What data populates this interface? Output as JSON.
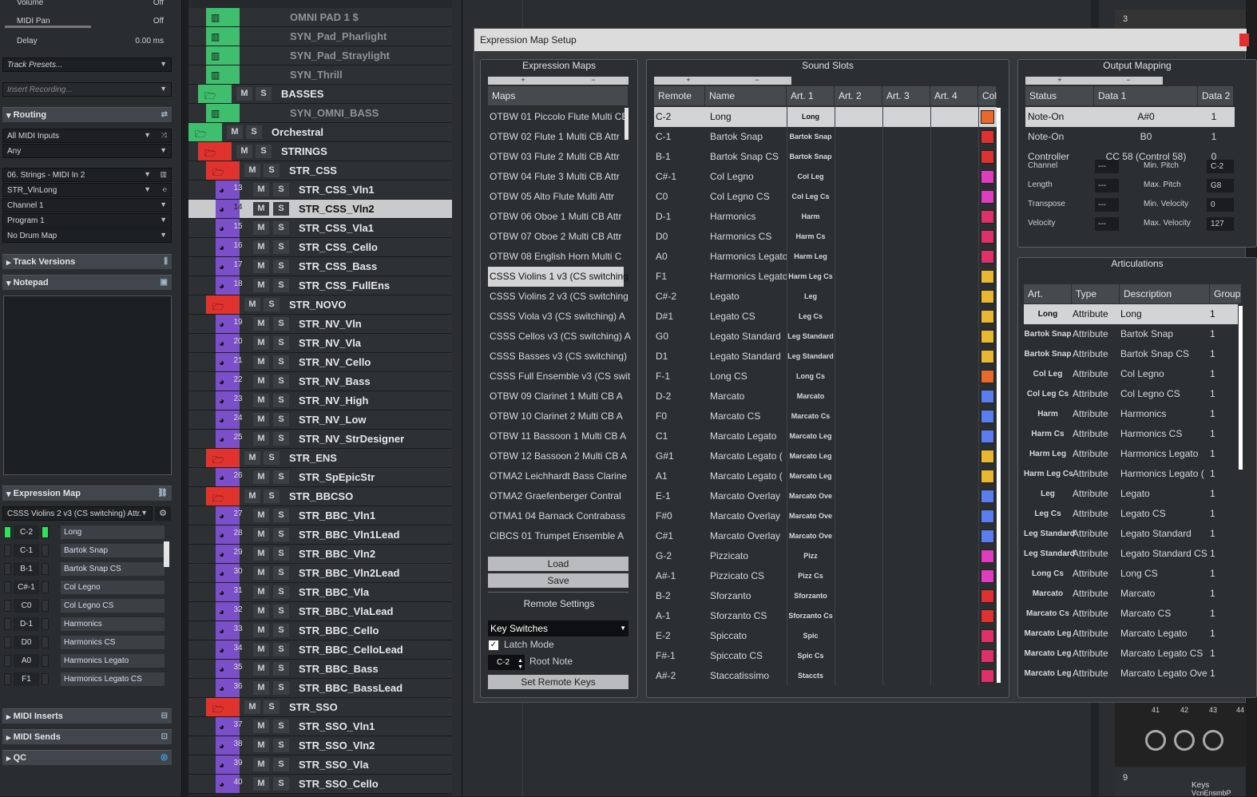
{
  "inspector": {
    "top_rows": [
      {
        "label": "Volume",
        "value": "Off"
      },
      {
        "label": "MIDI Pan",
        "value": "Off"
      },
      {
        "label": "Delay",
        "value": "0.00 ms"
      }
    ],
    "track_presets": "Track Presets...",
    "insert_recording": "Insert Recording...",
    "routing": {
      "title": "Routing",
      "input": "All MIDI Inputs",
      "any": "Any",
      "output": "06. Strings - MIDI In 2",
      "instrument": "STR_VlnLong",
      "channel": "Channel 1",
      "program": "Program 1",
      "drum_map": "No Drum Map"
    },
    "track_versions": "Track Versions",
    "notepad": "Notepad",
    "expression_map": {
      "title": "Expression Map",
      "selected": "CSSS Violins 2 v3 (CS switching) Attr.",
      "rows": [
        {
          "key": "C-2",
          "name": "Long",
          "on": true
        },
        {
          "key": "C-1",
          "name": "Bartok Snap",
          "on": false
        },
        {
          "key": "B-1",
          "name": "Bartok Snap CS",
          "on": false
        },
        {
          "key": "C#-1",
          "name": "Col Legno",
          "on": false
        },
        {
          "key": "C0",
          "name": "Col Legno CS",
          "on": false
        },
        {
          "key": "D-1",
          "name": "Harmonics",
          "on": false
        },
        {
          "key": "D0",
          "name": "Harmonics CS",
          "on": false
        },
        {
          "key": "A0",
          "name": "Harmonics Legato",
          "on": false
        },
        {
          "key": "F1",
          "name": "Harmonics Legato CS",
          "on": false
        }
      ]
    },
    "midi_inserts": "MIDI Inserts",
    "midi_sends": "MIDI Sends",
    "qc": "QC"
  },
  "tracks": [
    {
      "type": "inst",
      "name": "OMNI PAD 1 $",
      "color": "#3fbf6e",
      "dim": true
    },
    {
      "type": "inst",
      "name": "SYN_Pad_Pharlight",
      "color": "#3fbf6e",
      "dim": true
    },
    {
      "type": "inst",
      "name": "SYN_Pad_Straylight",
      "color": "#3fbf6e",
      "dim": true
    },
    {
      "type": "inst",
      "name": "SYN_Thrill",
      "color": "#3fbf6e",
      "dim": true
    },
    {
      "type": "folder",
      "name": "BASSES",
      "color": "#3fbf6e",
      "indent": 1
    },
    {
      "type": "inst",
      "name": "SYN_OMNI_BASS",
      "color": "#3fbf6e",
      "dim": true
    },
    {
      "type": "folder",
      "name": "Orchestral",
      "color": "#3fbf6e",
      "indent": 0
    },
    {
      "type": "folder",
      "name": "STRINGS",
      "color": "#e0332e",
      "indent": 1
    },
    {
      "type": "folder",
      "name": "STR_CSS",
      "color": "#e0332e",
      "indent": 2
    },
    {
      "type": "midi",
      "num": "13",
      "name": "STR_CSS_Vln1",
      "color": "#7b4fc8"
    },
    {
      "type": "midi",
      "num": "14",
      "name": "STR_CSS_Vln2",
      "color": "#7b4fc8",
      "selected": true
    },
    {
      "type": "midi",
      "num": "15",
      "name": "STR_CSS_Vla1",
      "color": "#7b4fc8"
    },
    {
      "type": "midi",
      "num": "16",
      "name": "STR_CSS_Cello",
      "color": "#7b4fc8"
    },
    {
      "type": "midi",
      "num": "17",
      "name": "STR_CSS_Bass",
      "color": "#7b4fc8"
    },
    {
      "type": "midi",
      "num": "18",
      "name": "STR_CSS_FullEns",
      "color": "#7b4fc8"
    },
    {
      "type": "folder",
      "name": "STR_NOVO",
      "color": "#e0332e",
      "indent": 2
    },
    {
      "type": "midi",
      "num": "19",
      "name": "STR_NV_Vln",
      "color": "#7b4fc8"
    },
    {
      "type": "midi",
      "num": "20",
      "name": "STR_NV_Vla",
      "color": "#7b4fc8"
    },
    {
      "type": "midi",
      "num": "21",
      "name": "STR_NV_Cello",
      "color": "#7b4fc8"
    },
    {
      "type": "midi",
      "num": "22",
      "name": "STR_NV_Bass",
      "color": "#7b4fc8"
    },
    {
      "type": "midi",
      "num": "23",
      "name": "STR_NV_High",
      "color": "#7b4fc8"
    },
    {
      "type": "midi",
      "num": "24",
      "name": "STR_NV_Low",
      "color": "#7b4fc8"
    },
    {
      "type": "midi",
      "num": "25",
      "name": "STR_NV_StrDesigner",
      "color": "#7b4fc8"
    },
    {
      "type": "folder",
      "name": "STR_ENS",
      "color": "#e0332e",
      "indent": 2
    },
    {
      "type": "midi",
      "num": "26",
      "name": "STR_SpEpicStr",
      "color": "#7b4fc8"
    },
    {
      "type": "folder",
      "name": "STR_BBCSO",
      "color": "#e0332e",
      "indent": 2
    },
    {
      "type": "midi",
      "num": "27",
      "name": "STR_BBC_Vln1",
      "color": "#7b4fc8"
    },
    {
      "type": "midi",
      "num": "28",
      "name": "STR_BBC_Vln1Lead",
      "color": "#7b4fc8"
    },
    {
      "type": "midi",
      "num": "29",
      "name": "STR_BBC_Vln2",
      "color": "#7b4fc8"
    },
    {
      "type": "midi",
      "num": "30",
      "name": "STR_BBC_Vln2Lead",
      "color": "#7b4fc8"
    },
    {
      "type": "midi",
      "num": "31",
      "name": "STR_BBC_Vla",
      "color": "#7b4fc8"
    },
    {
      "type": "midi",
      "num": "32",
      "name": "STR_BBC_VlaLead",
      "color": "#7b4fc8"
    },
    {
      "type": "midi",
      "num": "33",
      "name": "STR_BBC_Cello",
      "color": "#7b4fc8"
    },
    {
      "type": "midi",
      "num": "34",
      "name": "STR_BBC_CelloLead",
      "color": "#7b4fc8"
    },
    {
      "type": "midi",
      "num": "35",
      "name": "STR_BBC_Bass",
      "color": "#7b4fc8"
    },
    {
      "type": "midi",
      "num": "36",
      "name": "STR_BBC_BassLead",
      "color": "#7b4fc8"
    },
    {
      "type": "folder",
      "name": "STR_SSO",
      "color": "#e0332e",
      "indent": 2
    },
    {
      "type": "midi",
      "num": "37",
      "name": "STR_SSO_Vln1",
      "color": "#7b4fc8"
    },
    {
      "type": "midi",
      "num": "38",
      "name": "STR_SSO_Vln2",
      "color": "#7b4fc8"
    },
    {
      "type": "midi",
      "num": "39",
      "name": "STR_SSO_Vla",
      "color": "#7b4fc8"
    },
    {
      "type": "midi",
      "num": "40",
      "name": "STR_SSO_Cello",
      "color": "#7b4fc8"
    }
  ],
  "dialog": {
    "title": "Expression Map Setup",
    "maps_panel": {
      "title": "Expression Maps",
      "plus": "+",
      "minus": "−",
      "header": "Maps",
      "items": [
        "OTBW 01 Piccolo Flute Multi CB",
        "OTBW 02 Flute 1 Multi CB Attr",
        "OTBW 03 Flute 2 Multi CB Attr",
        "OTBW 04 Flute 3 Multi CB Attr",
        "OTBW 05 Alto Flute Multi Attr",
        "OTBW 06 Oboe 1 Multi CB Attr",
        "OTBW 07 Oboe 2 Multi CB Attr",
        "OTBW 08 English Horn Multi C",
        "CSSS Violins 1 v3 (CS switching",
        "CSSS Violins 2 v3 (CS switching",
        "CSSS Viola v3 (CS switching) A",
        "CSSS Cellos v3 (CS switching) A",
        "CSSS Basses v3 (CS switching)",
        "CSSS Full Ensemble v3 (CS swit",
        "OTBW 09 Clarinet 1 Multi CB A",
        "OTBW 10 Clarinet 2 Multi CB A",
        "OTBW 11 Bassoon 1 Multi CB A",
        "OTBW 12 Bassoon 2 Multi CB A",
        "OTMA2 Leichhardt Bass Clarine",
        "OTMA2 Graefenberger Contral",
        "OTMA1 04 Barnack Contrabass",
        "CIBCS 01 Trumpet Ensemble A"
      ],
      "selected_index": 8,
      "load": "Load",
      "save": "Save",
      "remote_title": "Remote Settings",
      "remote_mode": "Key Switches",
      "latch": "Latch Mode",
      "root_value": "C-2",
      "root_label": "Root Note",
      "set_keys": "Set Remote Keys"
    },
    "slots_panel": {
      "title": "Sound Slots",
      "plus": "+",
      "minus": "−",
      "headers": [
        "Remote",
        "Name",
        "Art. 1",
        "Art. 2",
        "Art. 3",
        "Art. 4",
        "Col"
      ],
      "rows": [
        {
          "remote": "C-2",
          "name": "Long",
          "art": "Long",
          "color": "#e8692a"
        },
        {
          "remote": "C-1",
          "name": "Bartok Snap",
          "art": "Bartok Snap",
          "color": "#e03030"
        },
        {
          "remote": "B-1",
          "name": "Bartok Snap CS",
          "art": "Bartok Snap",
          "color": "#e03030"
        },
        {
          "remote": "C#-1",
          "name": "Col Legno",
          "art": "Col Leg",
          "color": "#e03cc0"
        },
        {
          "remote": "C0",
          "name": "Col Legno CS",
          "art": "Col Leg Cs",
          "color": "#e03cc0"
        },
        {
          "remote": "D-1",
          "name": "Harmonics",
          "art": "Harm",
          "color": "#e0306a"
        },
        {
          "remote": "D0",
          "name": "Harmonics CS",
          "art": "Harm Cs",
          "color": "#e0306a"
        },
        {
          "remote": "A0",
          "name": "Harmonics Legato",
          "art": "Harm Leg",
          "color": "#e0306a"
        },
        {
          "remote": "F1",
          "name": "Harmonics Legato",
          "art": "Harm Leg Cs",
          "color": "#e8b830"
        },
        {
          "remote": "C#-2",
          "name": "Legato",
          "art": "Leg",
          "color": "#e8b830"
        },
        {
          "remote": "D#1",
          "name": "Legato CS",
          "art": "Leg Cs",
          "color": "#e8b830"
        },
        {
          "remote": "G0",
          "name": "Legato Standard",
          "art": "Leg Standard",
          "color": "#e8b830"
        },
        {
          "remote": "D1",
          "name": "Legato Standard",
          "art": "Leg Standard",
          "color": "#e8b830"
        },
        {
          "remote": "F-1",
          "name": "Long CS",
          "art": "Long Cs",
          "color": "#e8692a"
        },
        {
          "remote": "D-2",
          "name": "Marcato",
          "art": "Marcato",
          "color": "#5a7ef0"
        },
        {
          "remote": "F0",
          "name": "Marcato CS",
          "art": "Marcato Cs",
          "color": "#5a7ef0"
        },
        {
          "remote": "C1",
          "name": "Marcato Legato",
          "art": "Marcato Leg",
          "color": "#5a7ef0"
        },
        {
          "remote": "G#1",
          "name": "Marcato Legato (",
          "art": "Marcato Leg",
          "color": "#e8b830"
        },
        {
          "remote": "A1",
          "name": "Marcato Legato (",
          "art": "Marcato Leg",
          "color": "#e8b830"
        },
        {
          "remote": "E-1",
          "name": "Marcato Overlay",
          "art": "Marcato Ove",
          "color": "#5a7ef0"
        },
        {
          "remote": "F#0",
          "name": "Marcato Overlay",
          "art": "Marcato Ove",
          "color": "#5a7ef0"
        },
        {
          "remote": "C#1",
          "name": "Marcato Overlay",
          "art": "Marcato Ove",
          "color": "#5a7ef0"
        },
        {
          "remote": "G-2",
          "name": "Pizzicato",
          "art": "Pizz",
          "color": "#e03cc0"
        },
        {
          "remote": "A#-1",
          "name": "Pizzicato CS",
          "art": "Pizz Cs",
          "color": "#e03cc0"
        },
        {
          "remote": "B-2",
          "name": "Sforzanto",
          "art": "Sforzanto",
          "color": "#e03030"
        },
        {
          "remote": "A-1",
          "name": "Sforzanto CS",
          "art": "Sforzanto Cs",
          "color": "#e03030"
        },
        {
          "remote": "E-2",
          "name": "Spiccato",
          "art": "Spic",
          "color": "#e0306a"
        },
        {
          "remote": "F#-1",
          "name": "Spiccato CS",
          "art": "Spic Cs",
          "color": "#e0306a"
        },
        {
          "remote": "A#-2",
          "name": "Staccatissimo",
          "art": "Staccts",
          "color": "#e0306a"
        }
      ]
    },
    "output_panel": {
      "title": "Output Mapping",
      "plus": "+",
      "minus": "−",
      "headers": [
        "Status",
        "Data 1",
        "Data 2"
      ],
      "rows": [
        {
          "status": "Note-On",
          "d1": "A#0",
          "d2": "1"
        },
        {
          "status": "Note-On",
          "d1": "B0",
          "d2": "1"
        },
        {
          "status": "Controller",
          "d1": "CC 58 (Control 58)",
          "d2": "0"
        }
      ],
      "params_left": [
        {
          "label": "Channel",
          "value": "---"
        },
        {
          "label": "Length",
          "value": "---"
        },
        {
          "label": "Transpose",
          "value": "---"
        },
        {
          "label": "Velocity",
          "value": "---"
        }
      ],
      "params_right": [
        {
          "label": "Min. Pitch",
          "value": "C-2"
        },
        {
          "label": "Max. Pitch",
          "value": "G8"
        },
        {
          "label": "Min. Velocity",
          "value": "0"
        },
        {
          "label": "Max. Velocity",
          "value": "127"
        }
      ]
    },
    "art_panel": {
      "title": "Articulations",
      "headers": [
        "Art.",
        "Type",
        "Description",
        "Group"
      ],
      "rows": [
        {
          "art": "Long",
          "type": "Attribute",
          "desc": "Long",
          "group": "1"
        },
        {
          "art": "Bartok Snap",
          "type": "Attribute",
          "desc": "Bartok Snap",
          "group": "1"
        },
        {
          "art": "Bartok Snap",
          "type": "Attribute",
          "desc": "Bartok Snap CS",
          "group": "1"
        },
        {
          "art": "Col Leg",
          "type": "Attribute",
          "desc": "Col Legno",
          "group": "1"
        },
        {
          "art": "Col Leg Cs",
          "type": "Attribute",
          "desc": "Col Legno CS",
          "group": "1"
        },
        {
          "art": "Harm",
          "type": "Attribute",
          "desc": "Harmonics",
          "group": "1"
        },
        {
          "art": "Harm Cs",
          "type": "Attribute",
          "desc": "Harmonics CS",
          "group": "1"
        },
        {
          "art": "Harm Leg",
          "type": "Attribute",
          "desc": "Harmonics Legato",
          "group": "1"
        },
        {
          "art": "Harm Leg Cs",
          "type": "Attribute",
          "desc": "Harmonics Legato (",
          "group": "1"
        },
        {
          "art": "Leg",
          "type": "Attribute",
          "desc": "Legato",
          "group": "1"
        },
        {
          "art": "Leg Cs",
          "type": "Attribute",
          "desc": "Legato CS",
          "group": "1"
        },
        {
          "art": "Leg Standard",
          "type": "Attribute",
          "desc": "Legato Standard",
          "group": "1"
        },
        {
          "art": "Leg Standard",
          "type": "Attribute",
          "desc": "Legato Standard CS",
          "group": "1"
        },
        {
          "art": "Long Cs",
          "type": "Attribute",
          "desc": "Long CS",
          "group": "1"
        },
        {
          "art": "Marcato",
          "type": "Attribute",
          "desc": "Marcato",
          "group": "1"
        },
        {
          "art": "Marcato Cs",
          "type": "Attribute",
          "desc": "Marcato CS",
          "group": "1"
        },
        {
          "art": "Marcato Leg",
          "type": "Attribute",
          "desc": "Marcato Legato",
          "group": "1"
        },
        {
          "art": "Marcato Leg",
          "type": "Attribute",
          "desc": "Marcato Legato CS",
          "group": "1"
        },
        {
          "art": "Marcato Leg",
          "type": "Attribute",
          "desc": "Marcato Legato Ove",
          "group": "1"
        }
      ]
    }
  },
  "right_strip": {
    "track_num_top": "3",
    "track_num_bottom": "9",
    "mixer_numbers": [
      "41",
      "42",
      "43",
      "44"
    ],
    "bottom_label": "Keys",
    "bottom_sub": "VcnEnsmbP"
  }
}
